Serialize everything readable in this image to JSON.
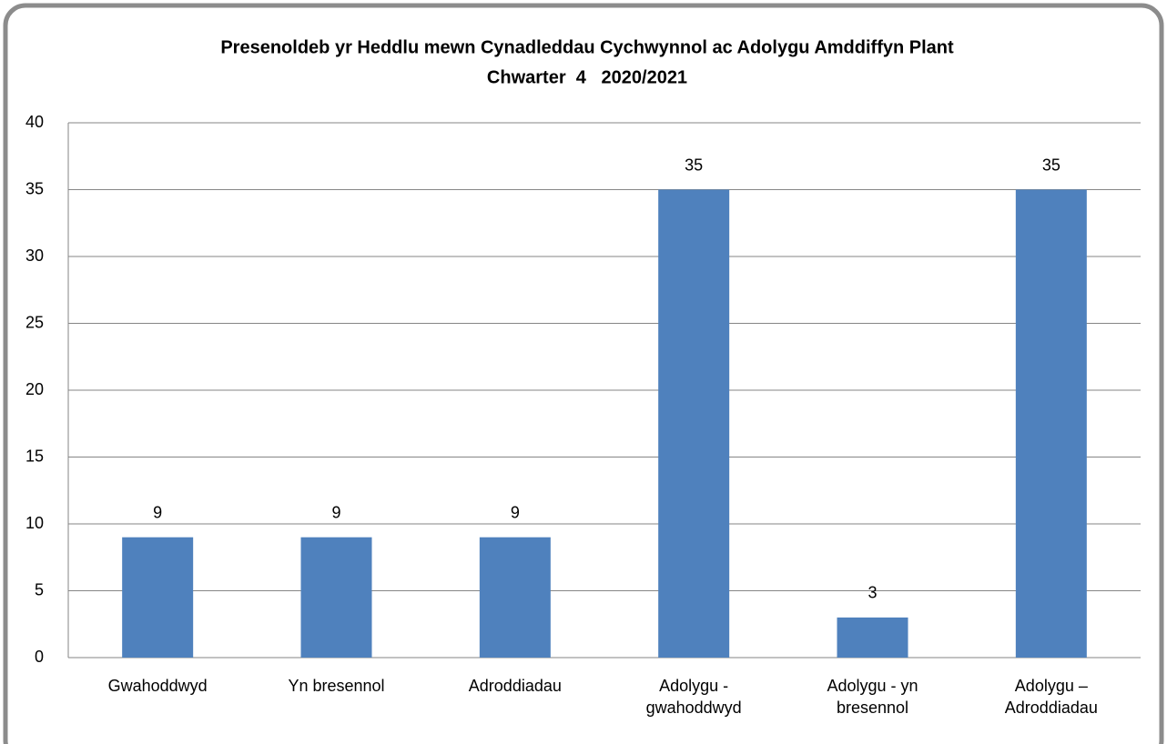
{
  "chart_data": {
    "type": "bar",
    "title": "Presenoldeb yr Heddlu mewn Cynadleddau Cychwynnol ac Adolygu Amddiffyn Plant",
    "subtitle": "Chwarter  4   2020/2021",
    "categories": [
      "Gwahoddwyd",
      "Yn bresennol",
      "Adroddiadau",
      "Adolygu - gwahoddwyd",
      "Adolygu - yn bresennol",
      "Adolygu – Adroddiadau"
    ],
    "values": [
      9,
      9,
      9,
      35,
      3,
      35
    ],
    "color": "#4f81bd",
    "ylim": [
      0,
      40
    ],
    "yticks": [
      0,
      5,
      10,
      15,
      20,
      25,
      30,
      35,
      40
    ],
    "grid": true
  }
}
